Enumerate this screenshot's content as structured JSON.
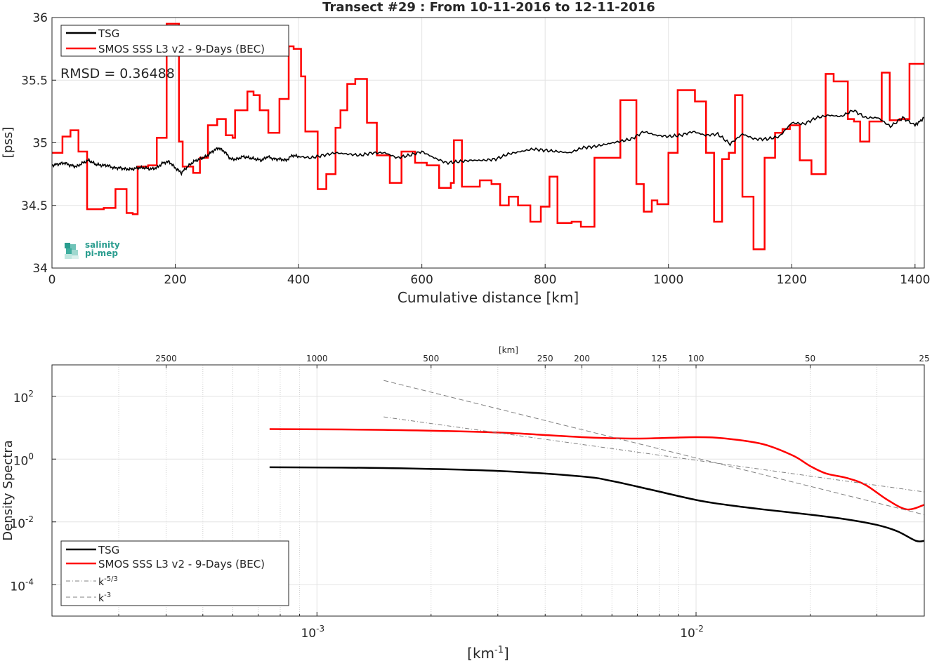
{
  "chart_data": [
    {
      "type": "line",
      "title": "Transect #29 : From 10-11-2016 to 12-11-2016",
      "xlabel": "Cumulative distance [km]",
      "ylabel": "[pss]",
      "xlim": [
        0,
        1415
      ],
      "ylim": [
        34,
        36
      ],
      "xticks": [
        "0",
        "200",
        "400",
        "600",
        "800",
        "1000",
        "1200",
        "1400"
      ],
      "yticks": [
        "34",
        "34.5",
        "35",
        "35.5",
        "36"
      ],
      "grid": true,
      "legend_position": "top-left",
      "annotation": "RMSD = 0.36488",
      "series": [
        {
          "name": "TSG",
          "color": "#000000",
          "x": [
            0,
            10,
            20,
            30,
            40,
            50,
            60,
            70,
            80,
            90,
            100,
            110,
            120,
            130,
            140,
            150,
            160,
            170,
            180,
            190,
            200,
            210,
            220,
            230,
            240,
            250,
            260,
            270,
            280,
            290,
            300,
            310,
            320,
            330,
            340,
            350,
            360,
            370,
            380,
            390,
            400,
            420,
            440,
            460,
            480,
            500,
            520,
            540,
            560,
            580,
            600,
            620,
            640,
            660,
            680,
            700,
            720,
            740,
            760,
            780,
            800,
            820,
            840,
            860,
            880,
            900,
            920,
            940,
            960,
            980,
            1000,
            1020,
            1040,
            1060,
            1080,
            1100,
            1120,
            1140,
            1160,
            1180,
            1200,
            1220,
            1240,
            1260,
            1280,
            1300,
            1320,
            1340,
            1360,
            1380,
            1400,
            1415
          ],
          "y": [
            34.82,
            34.83,
            34.84,
            34.82,
            34.81,
            34.84,
            34.86,
            34.83,
            34.82,
            34.82,
            34.8,
            34.8,
            34.79,
            34.79,
            34.8,
            34.8,
            34.79,
            34.8,
            34.84,
            34.85,
            34.8,
            34.76,
            34.81,
            34.85,
            34.87,
            34.89,
            34.93,
            34.96,
            34.93,
            34.87,
            34.87,
            34.89,
            34.88,
            34.87,
            34.86,
            34.89,
            34.87,
            34.87,
            34.86,
            34.9,
            34.89,
            34.88,
            34.9,
            34.92,
            34.91,
            34.9,
            34.92,
            34.92,
            34.88,
            34.9,
            34.93,
            34.88,
            34.84,
            34.85,
            34.86,
            34.86,
            34.87,
            34.91,
            34.93,
            34.95,
            34.94,
            34.93,
            34.92,
            34.96,
            34.97,
            34.99,
            35.01,
            35.03,
            35.09,
            35.06,
            35.05,
            35.06,
            35.09,
            35.06,
            35.07,
            34.99,
            35.07,
            35.03,
            35.03,
            35.05,
            35.16,
            35.15,
            35.2,
            35.22,
            35.21,
            35.26,
            35.2,
            35.2,
            35.13,
            35.2,
            35.14,
            35.2
          ]
        },
        {
          "name": "SMOS SSS L3 v2 - 9-Days (BEC)",
          "color": "#ff0000",
          "x": [
            0,
            17,
            30,
            43,
            57,
            84,
            103,
            121,
            131,
            139,
            156,
            170,
            186,
            206,
            212,
            229,
            240,
            253,
            268,
            282,
            293,
            297,
            317,
            327,
            337,
            351,
            369,
            384,
            392,
            404,
            411,
            431,
            445,
            460,
            468,
            479,
            492,
            511,
            527,
            548,
            567,
            589,
            608,
            628,
            647,
            652,
            665,
            694,
            713,
            727,
            741,
            756,
            776,
            793,
            807,
            820,
            843,
            858,
            880,
            922,
            948,
            960,
            973,
            982,
            1000,
            1015,
            1043,
            1061,
            1074,
            1087,
            1098,
            1108,
            1120,
            1138,
            1156,
            1173,
            1185,
            1197,
            1213,
            1232,
            1255,
            1268,
            1291,
            1301,
            1311,
            1326,
            1346,
            1359,
            1375,
            1391,
            1412,
            1415
          ],
          "y": [
            34.92,
            35.05,
            35.1,
            34.93,
            34.47,
            34.48,
            34.63,
            34.44,
            34.43,
            34.81,
            34.82,
            35.04,
            35.95,
            35.01,
            34.81,
            34.76,
            34.88,
            35.14,
            35.19,
            35.06,
            35.04,
            35.26,
            35.41,
            35.38,
            35.26,
            35.08,
            35.35,
            35.77,
            35.75,
            35.53,
            35.09,
            34.63,
            34.75,
            35.12,
            35.26,
            35.47,
            35.51,
            35.16,
            34.9,
            34.68,
            34.93,
            34.84,
            34.82,
            34.64,
            34.68,
            35.02,
            34.65,
            34.7,
            34.67,
            34.5,
            34.57,
            34.5,
            34.37,
            34.49,
            34.73,
            34.36,
            34.37,
            34.33,
            34.88,
            35.34,
            34.67,
            34.45,
            34.54,
            34.51,
            34.92,
            35.42,
            35.33,
            34.92,
            34.37,
            34.87,
            34.92,
            35.38,
            34.57,
            34.15,
            34.88,
            35.08,
            35.11,
            35.14,
            34.86,
            34.75,
            35.55,
            35.49,
            35.19,
            35.17,
            35.01,
            35.17,
            35.56,
            35.18,
            35.19,
            35.63,
            35.63,
            35.63
          ]
        }
      ]
    },
    {
      "type": "line",
      "xscale": "log",
      "yscale": "log",
      "xlabel_base": "[km",
      "xlabel_exp": "-1",
      "xlabel_close": "]",
      "ylabel": "Density Spectra",
      "top_axis_label": "[km]",
      "xlim": [
        0.0002,
        0.04
      ],
      "ylim": [
        1e-05,
        1000
      ],
      "x_major_ticks": [
        {
          "base": "10",
          "exp": "-3",
          "value": 0.001
        },
        {
          "base": "10",
          "exp": "-2",
          "value": 0.01
        }
      ],
      "y_major_ticks": [
        {
          "base": "10",
          "exp": "2",
          "value": 100
        },
        {
          "base": "10",
          "exp": "0",
          "value": 1
        },
        {
          "base": "10",
          "exp": "-2",
          "value": 0.01
        },
        {
          "base": "10",
          "exp": "-4",
          "value": 0.0001
        }
      ],
      "top_ticks": [
        "2500",
        "1000",
        "500",
        "250",
        "200",
        "125",
        "100",
        "50",
        "25"
      ],
      "grid": true,
      "legend_position": "bottom-left",
      "series": [
        {
          "name": "TSG",
          "color": "#000000",
          "x": [
            0.00075,
            0.0015,
            0.003,
            0.005,
            0.006,
            0.0075,
            0.01,
            0.012,
            0.015,
            0.02,
            0.025,
            0.03,
            0.034,
            0.038,
            0.04
          ],
          "y": [
            0.55,
            0.52,
            0.42,
            0.28,
            0.2,
            0.11,
            0.05,
            0.035,
            0.025,
            0.017,
            0.012,
            0.008,
            0.005,
            0.0025,
            0.0025
          ]
        },
        {
          "name": "SMOS SSS L3 v2 - 9-Days (BEC)",
          "color": "#ff0000",
          "x": [
            0.00075,
            0.0015,
            0.003,
            0.005,
            0.007,
            0.01,
            0.012,
            0.015,
            0.018,
            0.02,
            0.022,
            0.025,
            0.028,
            0.032,
            0.036,
            0.04
          ],
          "y": [
            9,
            8.5,
            7,
            5,
            4.5,
            5,
            4.5,
            3,
            1.3,
            0.6,
            0.35,
            0.25,
            0.15,
            0.05,
            0.025,
            0.035
          ]
        },
        {
          "name_base": "k",
          "name_exp": "-5/3",
          "color": "#808080",
          "style": "dash-dot",
          "x": [
            0.0015,
            0.04
          ],
          "y": [
            22,
            0.09
          ]
        },
        {
          "name_base": "k",
          "name_exp": "-3",
          "color": "#808080",
          "style": "dash",
          "x": [
            0.0015,
            0.04
          ],
          "y": [
            320,
            0.017
          ]
        }
      ]
    }
  ]
}
